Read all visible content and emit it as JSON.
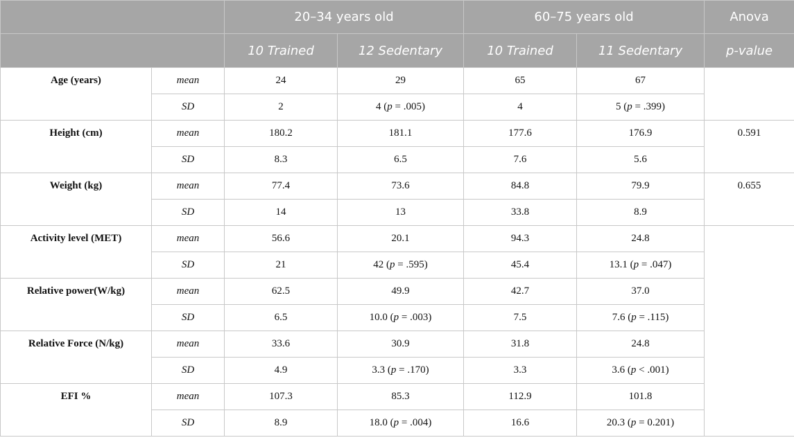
{
  "header": {
    "group1": "20–34 years old",
    "group2": "60–75 years old",
    "anova": "Anova",
    "sub": [
      "10 Trained",
      "12 Sedentary",
      "10 Trained",
      "11 Sedentary"
    ],
    "pvalue": "p-value"
  },
  "rows": [
    {
      "label": "Age (years)",
      "mean": {
        "stat": "mean",
        "c1": "24",
        "c2": "29",
        "c3": "65",
        "c4": "67"
      },
      "sd": {
        "stat": "SD",
        "c1": "2",
        "c2_val": "4",
        "c2_p": ".005",
        "c3": "4",
        "c4_val": "5",
        "c4_p": ".399"
      },
      "anova": ""
    },
    {
      "label": "Height (cm)",
      "mean": {
        "stat": "mean",
        "c1": "180.2",
        "c2": "181.1",
        "c3": "177.6",
        "c4": "176.9"
      },
      "sd": {
        "stat": "SD",
        "c1": "8.3",
        "c2": "6.5",
        "c3": "7.6",
        "c4": "5.6"
      },
      "anova": "0.591"
    },
    {
      "label": "Weight (kg)",
      "mean": {
        "stat": "mean",
        "c1": "77.4",
        "c2": "73.6",
        "c3": "84.8",
        "c4": "79.9"
      },
      "sd": {
        "stat": "SD",
        "c1": "14",
        "c2": "13",
        "c3": "33.8",
        "c4": "8.9"
      },
      "anova": "0.655"
    },
    {
      "label": "Activity level (MET)",
      "mean": {
        "stat": "mean",
        "c1": "56.6",
        "c2": "20.1",
        "c3": "94.3",
        "c4": "24.8"
      },
      "sd": {
        "stat": "SD",
        "c1": "21",
        "c2_val": "42",
        "c2_p": ".595",
        "c3": "45.4",
        "c4_val": "13.1",
        "c4_p": ".047"
      },
      "anova": ""
    },
    {
      "label": "Relative power(W/kg)",
      "mean": {
        "stat": "mean",
        "c1": "62.5",
        "c2": "49.9",
        "c3": "42.7",
        "c4": "37.0"
      },
      "sd": {
        "stat": "SD",
        "c1": "6.5",
        "c2_val": "10.0",
        "c2_p": ".003",
        "c3": "7.5",
        "c4_val": "7.6",
        "c4_p": ".115"
      },
      "anova": ""
    },
    {
      "label": "Relative Force (N/kg)",
      "mean": {
        "stat": "mean",
        "c1": "33.6",
        "c2": "30.9",
        "c3": "31.8",
        "c4": "24.8"
      },
      "sd": {
        "stat": "SD",
        "c1": "4.9",
        "c2_val": "3.3",
        "c2_p": ".170",
        "c3": "3.3",
        "c4_val": "3.6",
        "c4_op": "<",
        "c4_p": ".001"
      },
      "anova": ""
    },
    {
      "label": "EFI %",
      "mean": {
        "stat": "mean",
        "c1": "107.3",
        "c2": "85.3",
        "c3": "112.9",
        "c4": "101.8"
      },
      "sd": {
        "stat": "SD",
        "c1": "8.9",
        "c2_val": "18.0",
        "c2_p": ".004",
        "c3": "16.6",
        "c4_val": "20.3",
        "c4_p": "0.201"
      },
      "anova": ""
    }
  ]
}
